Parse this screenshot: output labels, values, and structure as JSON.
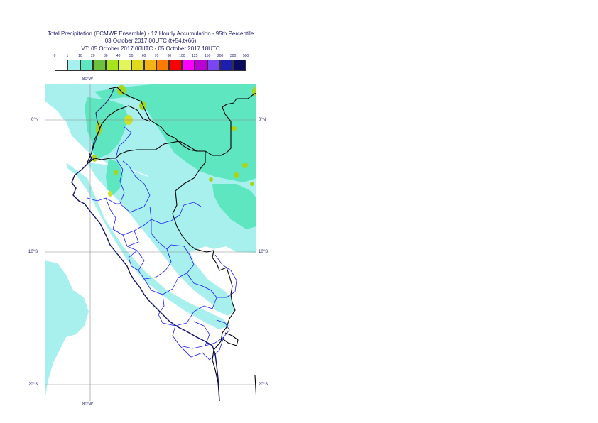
{
  "title": {
    "line1": "Total Precipitation (ECMWF Ensemble) - 12 Hourly Accumulation - 95th Percentile",
    "line2": "03 October 2017 00UTC (t+54,t+66)",
    "line3": "VT: 05 October 2017 06UTC - 05 October 2017 18UTC"
  },
  "legend": {
    "ticks": [
      "0",
      "1",
      "10",
      "20",
      "30",
      "40",
      "50",
      "60",
      "70",
      "80",
      "100",
      "125",
      "150",
      "200",
      "300",
      "500"
    ],
    "colors": [
      "#ffffff",
      "#a8f0ee",
      "#5ee6c0",
      "#6cc23c",
      "#a6e51e",
      "#e2f55a",
      "#e0d91c",
      "#f2b417",
      "#fe7a00",
      "#fb0000",
      "#ff00ff",
      "#b900d4",
      "#7a45f2",
      "#1e1eac",
      "#0a0a60"
    ]
  },
  "map": {
    "colors": {
      "light": "#a8f0ee",
      "medium": "#5ee6c0",
      "green": "#a6d51e",
      "yellow": "#cde02a",
      "coast": "#111166",
      "border": "#000000",
      "provinces": "#1a1aff",
      "grid": "#8a8a8a"
    },
    "grid_labels": {
      "lon_top": "80°W",
      "lon_bottom": "80°W",
      "lat0_left": "0°N",
      "lat0_right": "0°N",
      "lat10_left": "10°S",
      "lat10_right": "10°S",
      "lat20_left": "20°S",
      "lat20_right": "20°S"
    }
  }
}
